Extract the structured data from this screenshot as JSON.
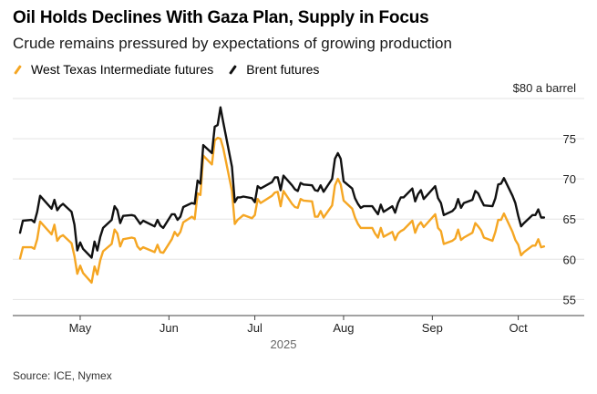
{
  "title": "Oil Holds Declines With Gaza Plan, Supply in Focus",
  "subtitle": "Crude remains pressured by expectations of growing production",
  "source": "Source: ICE, Nymex",
  "chart_data": {
    "type": "line",
    "title": "Oil Holds Declines With Gaza Plan, Supply in Focus",
    "subtitle": "Crude remains pressured by expectations of growing production",
    "unit_label": "$80 a barrel",
    "year_label": "2025",
    "x_axis_type": "date",
    "xlim": [
      "2025-04-10",
      "2025-10-11"
    ],
    "ylim": [
      53,
      80
    ],
    "ytick_values": [
      55,
      60,
      65,
      70,
      75
    ],
    "ytick_labels": [
      "55",
      "60",
      "65",
      "70",
      "75"
    ],
    "xticks": [
      {
        "date": "2025-05-01",
        "label": "May"
      },
      {
        "date": "2025-06-01",
        "label": "Jun"
      },
      {
        "date": "2025-07-01",
        "label": "Jul"
      },
      {
        "date": "2025-08-01",
        "label": "Aug"
      },
      {
        "date": "2025-09-01",
        "label": "Sep"
      },
      {
        "date": "2025-10-01",
        "label": "Oct"
      }
    ],
    "grid": true,
    "legend_position": "top-left",
    "series": [
      {
        "name": "West Texas Intermediate futures",
        "color": "#f5a623",
        "points": [
          [
            "2025-04-10",
            60.1
          ],
          [
            "2025-04-11",
            61.5
          ],
          [
            "2025-04-14",
            61.5
          ],
          [
            "2025-04-15",
            61.3
          ],
          [
            "2025-04-16",
            62.5
          ],
          [
            "2025-04-17",
            64.7
          ],
          [
            "2025-04-21",
            63.1
          ],
          [
            "2025-04-22",
            64.3
          ],
          [
            "2025-04-23",
            62.3
          ],
          [
            "2025-04-24",
            62.8
          ],
          [
            "2025-04-25",
            63.0
          ],
          [
            "2025-04-28",
            62.0
          ],
          [
            "2025-04-29",
            60.4
          ],
          [
            "2025-04-30",
            58.2
          ],
          [
            "2025-05-01",
            59.2
          ],
          [
            "2025-05-02",
            58.3
          ],
          [
            "2025-05-05",
            57.1
          ],
          [
            "2025-05-06",
            59.1
          ],
          [
            "2025-05-07",
            58.1
          ],
          [
            "2025-05-08",
            59.9
          ],
          [
            "2025-05-09",
            61.0
          ],
          [
            "2025-05-12",
            61.9
          ],
          [
            "2025-05-13",
            63.7
          ],
          [
            "2025-05-14",
            63.2
          ],
          [
            "2025-05-15",
            61.6
          ],
          [
            "2025-05-16",
            62.5
          ],
          [
            "2025-05-19",
            62.7
          ],
          [
            "2025-05-20",
            62.6
          ],
          [
            "2025-05-21",
            61.6
          ],
          [
            "2025-05-22",
            61.2
          ],
          [
            "2025-05-23",
            61.5
          ],
          [
            "2025-05-27",
            60.9
          ],
          [
            "2025-05-28",
            61.8
          ],
          [
            "2025-05-29",
            60.9
          ],
          [
            "2025-05-30",
            60.8
          ],
          [
            "2025-06-02",
            62.5
          ],
          [
            "2025-06-03",
            63.4
          ],
          [
            "2025-06-04",
            62.9
          ],
          [
            "2025-06-05",
            63.4
          ],
          [
            "2025-06-06",
            64.6
          ],
          [
            "2025-06-09",
            65.3
          ],
          [
            "2025-06-10",
            65.0
          ],
          [
            "2025-06-11",
            68.2
          ],
          [
            "2025-06-12",
            68.0
          ],
          [
            "2025-06-13",
            72.9
          ],
          [
            "2025-06-16",
            71.8
          ],
          [
            "2025-06-17",
            74.8
          ],
          [
            "2025-06-18",
            75.1
          ],
          [
            "2025-06-19",
            75.0
          ],
          [
            "2025-06-20",
            73.8
          ],
          [
            "2025-06-23",
            68.5
          ],
          [
            "2025-06-24",
            64.4
          ],
          [
            "2025-06-25",
            64.9
          ],
          [
            "2025-06-26",
            65.2
          ],
          [
            "2025-06-27",
            65.5
          ],
          [
            "2025-06-30",
            65.1
          ],
          [
            "2025-07-01",
            65.5
          ],
          [
            "2025-07-02",
            67.5
          ],
          [
            "2025-07-03",
            67.0
          ],
          [
            "2025-07-07",
            67.9
          ],
          [
            "2025-07-08",
            68.3
          ],
          [
            "2025-07-09",
            68.4
          ],
          [
            "2025-07-10",
            66.6
          ],
          [
            "2025-07-11",
            68.5
          ],
          [
            "2025-07-14",
            66.9
          ],
          [
            "2025-07-15",
            66.5
          ],
          [
            "2025-07-16",
            66.4
          ],
          [
            "2025-07-17",
            67.5
          ],
          [
            "2025-07-18",
            67.3
          ],
          [
            "2025-07-21",
            67.2
          ],
          [
            "2025-07-22",
            65.3
          ],
          [
            "2025-07-23",
            65.3
          ],
          [
            "2025-07-24",
            66.0
          ],
          [
            "2025-07-25",
            65.2
          ],
          [
            "2025-07-28",
            66.7
          ],
          [
            "2025-07-29",
            69.2
          ],
          [
            "2025-07-30",
            70.0
          ],
          [
            "2025-07-31",
            69.3
          ],
          [
            "2025-08-01",
            67.3
          ],
          [
            "2025-08-04",
            66.3
          ],
          [
            "2025-08-05",
            65.2
          ],
          [
            "2025-08-06",
            64.4
          ],
          [
            "2025-08-07",
            63.9
          ],
          [
            "2025-08-08",
            63.9
          ],
          [
            "2025-08-11",
            63.9
          ],
          [
            "2025-08-12",
            63.2
          ],
          [
            "2025-08-13",
            62.7
          ],
          [
            "2025-08-14",
            63.9
          ],
          [
            "2025-08-15",
            62.8
          ],
          [
            "2025-08-18",
            63.4
          ],
          [
            "2025-08-19",
            62.4
          ],
          [
            "2025-08-20",
            63.2
          ],
          [
            "2025-08-21",
            63.5
          ],
          [
            "2025-08-22",
            63.7
          ],
          [
            "2025-08-25",
            64.8
          ],
          [
            "2025-08-26",
            63.3
          ],
          [
            "2025-08-27",
            64.2
          ],
          [
            "2025-08-28",
            64.6
          ],
          [
            "2025-08-29",
            64.0
          ],
          [
            "2025-09-02",
            65.6
          ],
          [
            "2025-09-03",
            63.9
          ],
          [
            "2025-09-04",
            63.5
          ],
          [
            "2025-09-05",
            61.9
          ],
          [
            "2025-09-08",
            62.3
          ],
          [
            "2025-09-09",
            62.6
          ],
          [
            "2025-09-10",
            63.7
          ],
          [
            "2025-09-11",
            62.4
          ],
          [
            "2025-09-12",
            62.7
          ],
          [
            "2025-09-15",
            63.3
          ],
          [
            "2025-09-16",
            64.5
          ],
          [
            "2025-09-17",
            64.1
          ],
          [
            "2025-09-18",
            63.6
          ],
          [
            "2025-09-19",
            62.7
          ],
          [
            "2025-09-22",
            62.3
          ],
          [
            "2025-09-23",
            63.4
          ],
          [
            "2025-09-24",
            64.9
          ],
          [
            "2025-09-25",
            64.9
          ],
          [
            "2025-09-26",
            65.7
          ],
          [
            "2025-09-29",
            63.4
          ],
          [
            "2025-09-30",
            62.4
          ],
          [
            "2025-10-01",
            61.8
          ],
          [
            "2025-10-02",
            60.5
          ],
          [
            "2025-10-03",
            60.9
          ],
          [
            "2025-10-06",
            61.7
          ],
          [
            "2025-10-07",
            61.7
          ],
          [
            "2025-10-08",
            62.5
          ],
          [
            "2025-10-09",
            61.5
          ],
          [
            "2025-10-10",
            61.6
          ]
        ]
      },
      {
        "name": "Brent futures",
        "color": "#111111",
        "points": [
          [
            "2025-04-10",
            63.3
          ],
          [
            "2025-04-11",
            64.8
          ],
          [
            "2025-04-14",
            64.9
          ],
          [
            "2025-04-15",
            64.6
          ],
          [
            "2025-04-16",
            65.9
          ],
          [
            "2025-04-17",
            67.9
          ],
          [
            "2025-04-21",
            66.3
          ],
          [
            "2025-04-22",
            67.4
          ],
          [
            "2025-04-23",
            66.1
          ],
          [
            "2025-04-24",
            66.6
          ],
          [
            "2025-04-25",
            66.9
          ],
          [
            "2025-04-28",
            65.9
          ],
          [
            "2025-04-29",
            64.3
          ],
          [
            "2025-04-30",
            61.1
          ],
          [
            "2025-05-01",
            62.1
          ],
          [
            "2025-05-02",
            61.3
          ],
          [
            "2025-05-05",
            60.2
          ],
          [
            "2025-05-06",
            62.2
          ],
          [
            "2025-05-07",
            61.1
          ],
          [
            "2025-05-08",
            62.8
          ],
          [
            "2025-05-09",
            63.9
          ],
          [
            "2025-05-12",
            64.9
          ],
          [
            "2025-05-13",
            66.6
          ],
          [
            "2025-05-14",
            66.1
          ],
          [
            "2025-05-15",
            64.5
          ],
          [
            "2025-05-16",
            65.4
          ],
          [
            "2025-05-19",
            65.5
          ],
          [
            "2025-05-20",
            65.4
          ],
          [
            "2025-05-21",
            64.9
          ],
          [
            "2025-05-22",
            64.4
          ],
          [
            "2025-05-23",
            64.8
          ],
          [
            "2025-05-27",
            64.1
          ],
          [
            "2025-05-28",
            64.9
          ],
          [
            "2025-05-29",
            64.2
          ],
          [
            "2025-05-30",
            63.9
          ],
          [
            "2025-06-02",
            65.6
          ],
          [
            "2025-06-03",
            65.6
          ],
          [
            "2025-06-04",
            64.9
          ],
          [
            "2025-06-05",
            65.3
          ],
          [
            "2025-06-06",
            66.5
          ],
          [
            "2025-06-09",
            67.0
          ],
          [
            "2025-06-10",
            66.9
          ],
          [
            "2025-06-11",
            69.8
          ],
          [
            "2025-06-12",
            69.4
          ],
          [
            "2025-06-13",
            74.2
          ],
          [
            "2025-06-16",
            73.2
          ],
          [
            "2025-06-17",
            76.5
          ],
          [
            "2025-06-18",
            76.7
          ],
          [
            "2025-06-19",
            78.9
          ],
          [
            "2025-06-20",
            77.0
          ],
          [
            "2025-06-23",
            71.5
          ],
          [
            "2025-06-24",
            67.1
          ],
          [
            "2025-06-25",
            67.7
          ],
          [
            "2025-06-26",
            67.7
          ],
          [
            "2025-06-27",
            67.8
          ],
          [
            "2025-06-30",
            67.6
          ],
          [
            "2025-07-01",
            67.1
          ],
          [
            "2025-07-02",
            69.1
          ],
          [
            "2025-07-03",
            68.8
          ],
          [
            "2025-07-07",
            69.6
          ],
          [
            "2025-07-08",
            70.2
          ],
          [
            "2025-07-09",
            70.2
          ],
          [
            "2025-07-10",
            68.6
          ],
          [
            "2025-07-11",
            70.4
          ],
          [
            "2025-07-14",
            69.2
          ],
          [
            "2025-07-15",
            68.7
          ],
          [
            "2025-07-16",
            68.5
          ],
          [
            "2025-07-17",
            69.5
          ],
          [
            "2025-07-18",
            69.3
          ],
          [
            "2025-07-21",
            69.2
          ],
          [
            "2025-07-22",
            68.6
          ],
          [
            "2025-07-23",
            68.5
          ],
          [
            "2025-07-24",
            69.2
          ],
          [
            "2025-07-25",
            68.4
          ],
          [
            "2025-07-28",
            70.0
          ],
          [
            "2025-07-29",
            72.5
          ],
          [
            "2025-07-30",
            73.2
          ],
          [
            "2025-07-31",
            72.5
          ],
          [
            "2025-08-01",
            69.7
          ],
          [
            "2025-08-04",
            68.8
          ],
          [
            "2025-08-05",
            67.6
          ],
          [
            "2025-08-06",
            66.9
          ],
          [
            "2025-08-07",
            66.4
          ],
          [
            "2025-08-08",
            66.6
          ],
          [
            "2025-08-11",
            66.6
          ],
          [
            "2025-08-12",
            66.1
          ],
          [
            "2025-08-13",
            65.6
          ],
          [
            "2025-08-14",
            66.8
          ],
          [
            "2025-08-15",
            65.9
          ],
          [
            "2025-08-18",
            66.6
          ],
          [
            "2025-08-19",
            65.8
          ],
          [
            "2025-08-20",
            67.0
          ],
          [
            "2025-08-21",
            67.7
          ],
          [
            "2025-08-22",
            67.7
          ],
          [
            "2025-08-25",
            68.8
          ],
          [
            "2025-08-26",
            67.2
          ],
          [
            "2025-08-27",
            68.1
          ],
          [
            "2025-08-28",
            68.6
          ],
          [
            "2025-08-29",
            67.5
          ],
          [
            "2025-09-02",
            69.1
          ],
          [
            "2025-09-03",
            67.6
          ],
          [
            "2025-09-04",
            67.0
          ],
          [
            "2025-09-05",
            65.5
          ],
          [
            "2025-09-08",
            66.0
          ],
          [
            "2025-09-09",
            66.4
          ],
          [
            "2025-09-10",
            67.5
          ],
          [
            "2025-09-11",
            66.4
          ],
          [
            "2025-09-12",
            67.0
          ],
          [
            "2025-09-15",
            67.4
          ],
          [
            "2025-09-16",
            68.5
          ],
          [
            "2025-09-17",
            68.2
          ],
          [
            "2025-09-18",
            67.4
          ],
          [
            "2025-09-19",
            66.7
          ],
          [
            "2025-09-22",
            66.6
          ],
          [
            "2025-09-23",
            67.6
          ],
          [
            "2025-09-24",
            69.3
          ],
          [
            "2025-09-25",
            69.4
          ],
          [
            "2025-09-26",
            70.1
          ],
          [
            "2025-09-29",
            67.9
          ],
          [
            "2025-09-30",
            67.0
          ],
          [
            "2025-10-01",
            65.4
          ],
          [
            "2025-10-02",
            64.1
          ],
          [
            "2025-10-03",
            64.5
          ],
          [
            "2025-10-06",
            65.5
          ],
          [
            "2025-10-07",
            65.5
          ],
          [
            "2025-10-08",
            66.2
          ],
          [
            "2025-10-09",
            65.2
          ],
          [
            "2025-10-10",
            65.2
          ]
        ]
      }
    ]
  }
}
